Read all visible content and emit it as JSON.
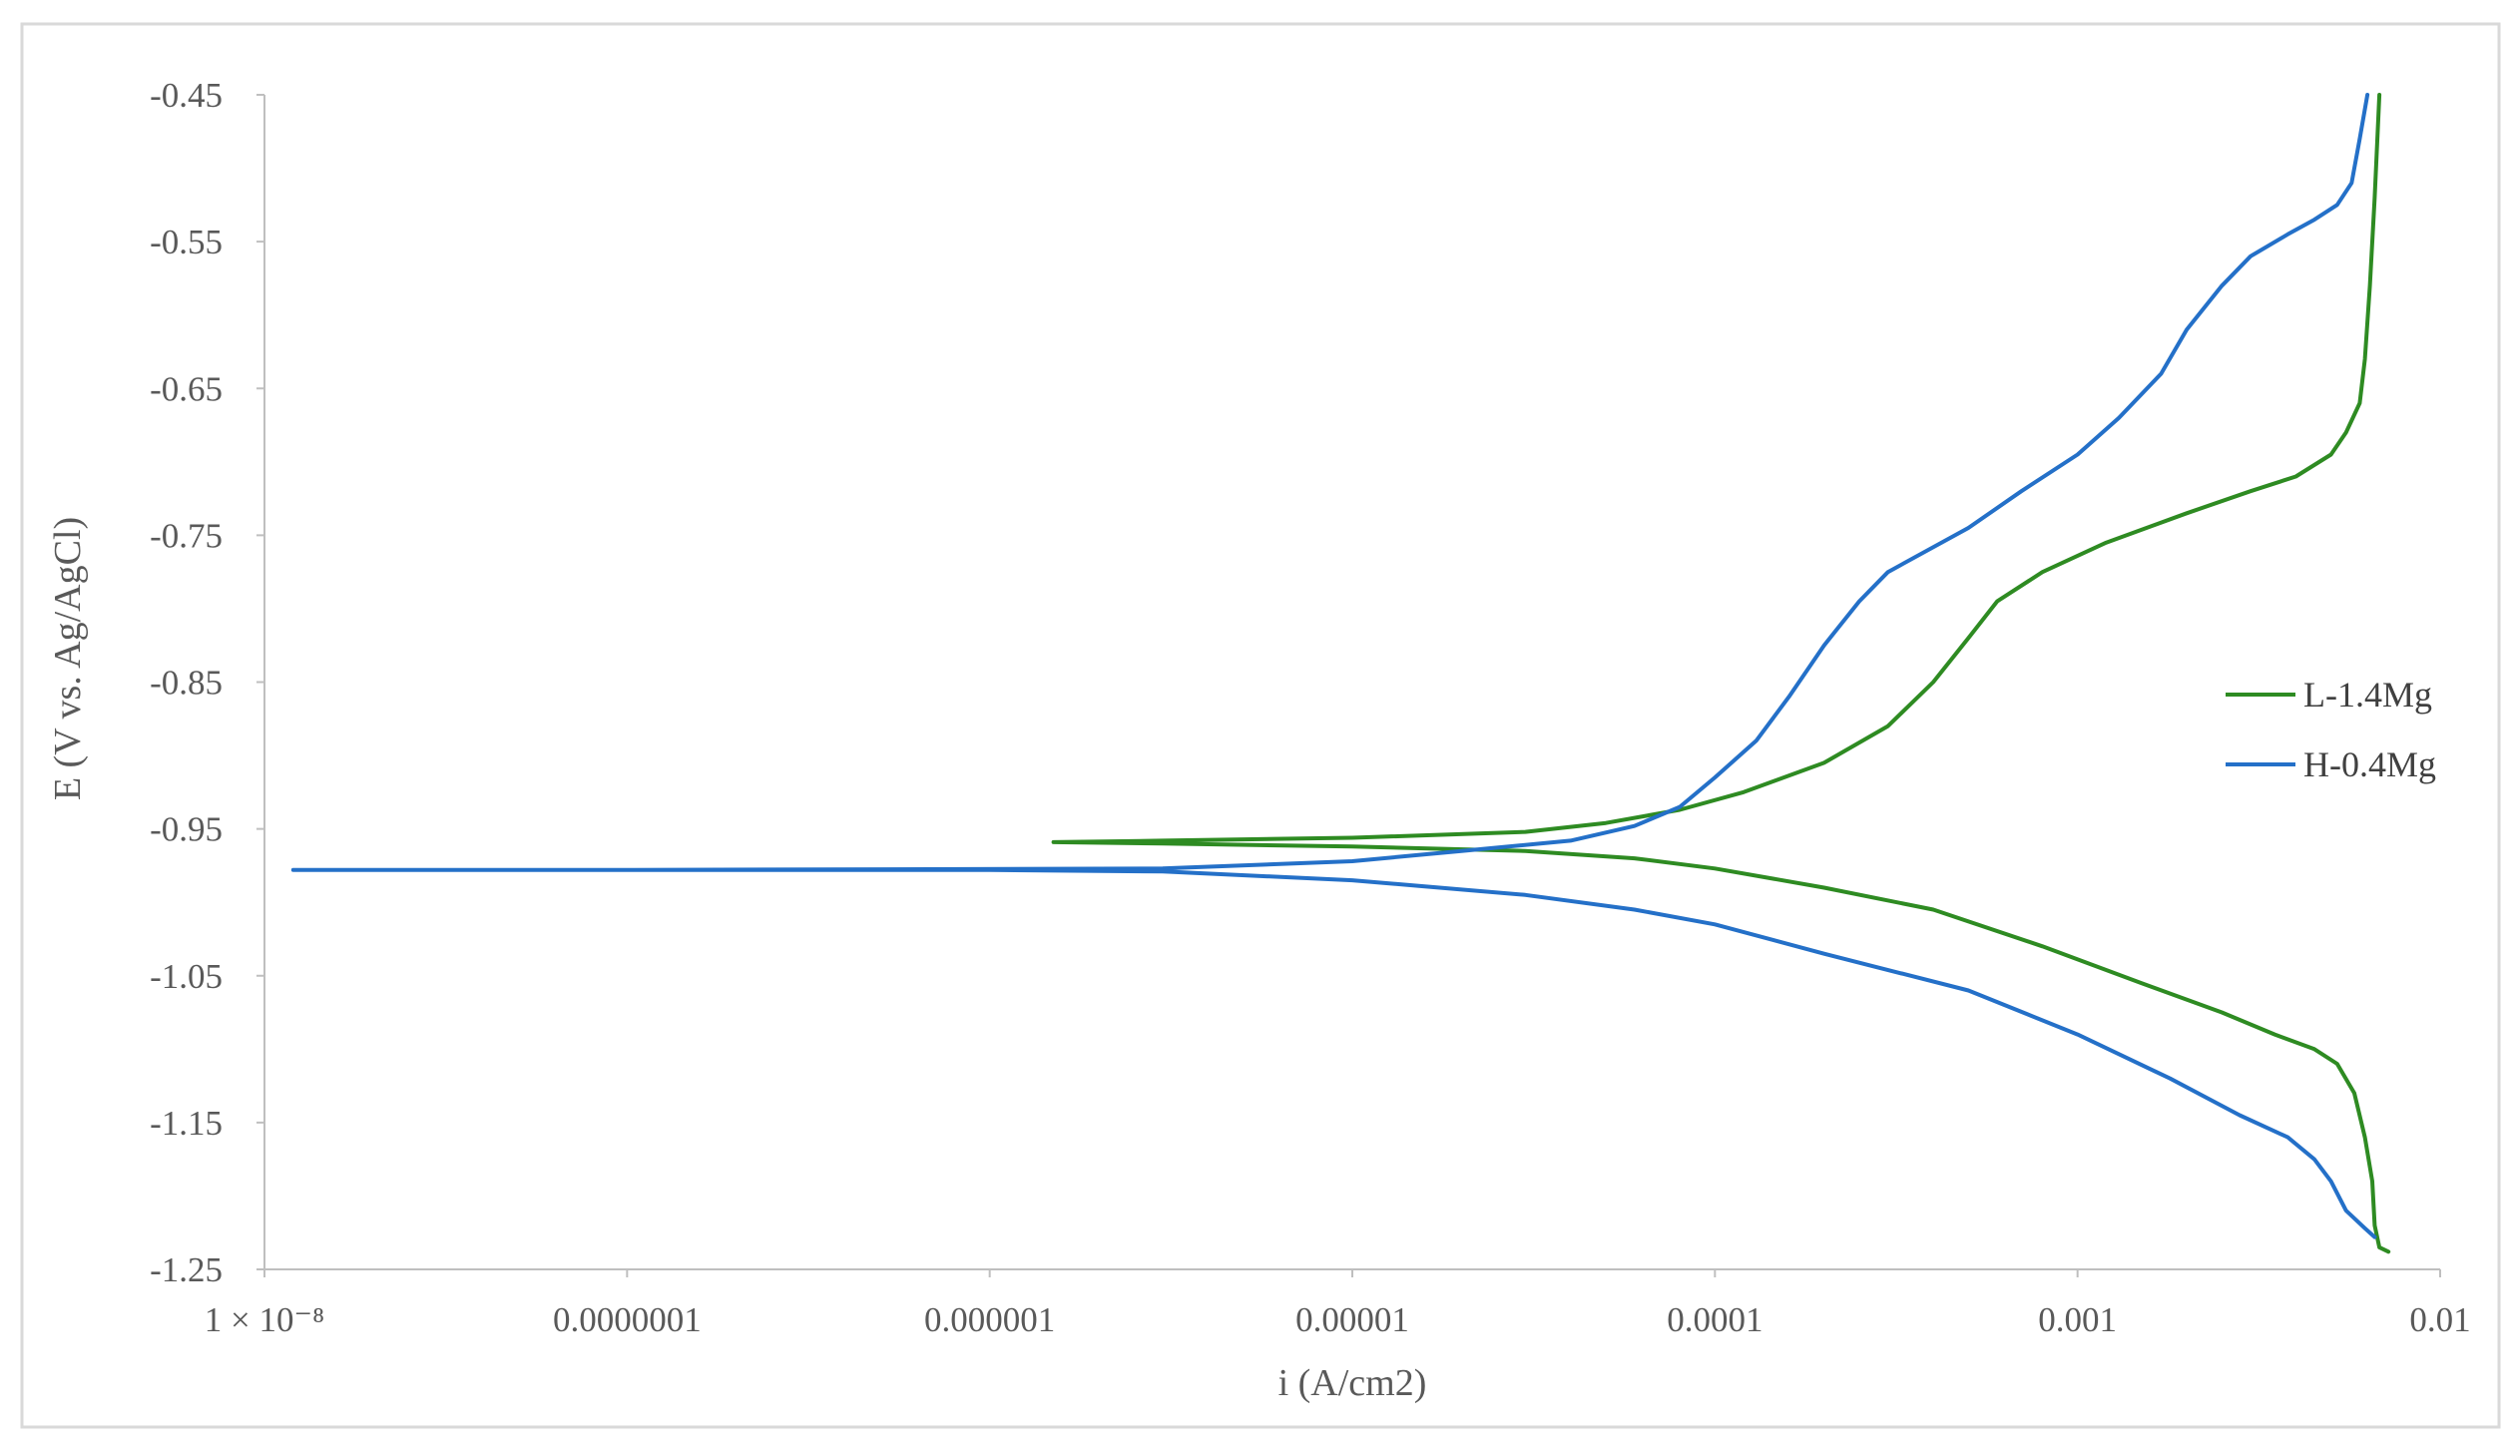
{
  "chart_data": {
    "type": "line",
    "title": "",
    "xlabel": "i (A/cm2)",
    "ylabel": "E (V vs. Ag/AgCl)",
    "x_scale": "log",
    "xlim": [
      1e-08,
      0.01
    ],
    "ylim": [
      -1.25,
      -0.45
    ],
    "grid": false,
    "legend_position": "right",
    "x_ticks": [
      {
        "value": 1e-08,
        "label": "1 × 10⁻⁸"
      },
      {
        "value": 1e-07,
        "label": "0.0000001"
      },
      {
        "value": 1e-06,
        "label": "0.000001"
      },
      {
        "value": 1e-05,
        "label": "0.00001"
      },
      {
        "value": 0.0001,
        "label": "0.0001"
      },
      {
        "value": 0.001,
        "label": "0.001"
      },
      {
        "value": 0.01,
        "label": "0.01"
      }
    ],
    "y_ticks": [
      {
        "value": -0.45,
        "label": "-0.45"
      },
      {
        "value": -0.55,
        "label": "-0.55"
      },
      {
        "value": -0.65,
        "label": "-0.65"
      },
      {
        "value": -0.75,
        "label": "-0.75"
      },
      {
        "value": -0.85,
        "label": "-0.85"
      },
      {
        "value": -0.95,
        "label": "-0.95"
      },
      {
        "value": -1.05,
        "label": "-1.05"
      },
      {
        "value": -1.15,
        "label": "-1.15"
      },
      {
        "value": -1.25,
        "label": "-1.25"
      }
    ],
    "series": [
      {
        "name": "L-1.4Mg",
        "color": "#2e8b22",
        "points": [
          [
            0.0068,
            -0.45
          ],
          [
            0.0066,
            -0.52
          ],
          [
            0.0064,
            -0.58
          ],
          [
            0.0062,
            -0.63
          ],
          [
            0.006,
            -0.66
          ],
          [
            0.0055,
            -0.68
          ],
          [
            0.005,
            -0.695
          ],
          [
            0.004,
            -0.71
          ],
          [
            0.003,
            -0.72
          ],
          [
            0.002,
            -0.735
          ],
          [
            0.0012,
            -0.755
          ],
          [
            0.0008,
            -0.775
          ],
          [
            0.0006,
            -0.795
          ],
          [
            0.0005,
            -0.82
          ],
          [
            0.0004,
            -0.85
          ],
          [
            0.0003,
            -0.88
          ],
          [
            0.0002,
            -0.905
          ],
          [
            0.00012,
            -0.925
          ],
          [
            8e-05,
            -0.937
          ],
          [
            5e-05,
            -0.946
          ],
          [
            3e-05,
            -0.952
          ],
          [
            1e-05,
            -0.956
          ],
          [
            3e-06,
            -0.958
          ],
          [
            1.5e-06,
            -0.959
          ],
          [
            3e-06,
            -0.96
          ],
          [
            1e-05,
            -0.962
          ],
          [
            3e-05,
            -0.965
          ],
          [
            6e-05,
            -0.97
          ],
          [
            0.0001,
            -0.977
          ],
          [
            0.0002,
            -0.99
          ],
          [
            0.0004,
            -1.005
          ],
          [
            0.0008,
            -1.03
          ],
          [
            0.0015,
            -1.055
          ],
          [
            0.0025,
            -1.075
          ],
          [
            0.0035,
            -1.09
          ],
          [
            0.0045,
            -1.1
          ],
          [
            0.0052,
            -1.11
          ],
          [
            0.0058,
            -1.13
          ],
          [
            0.0062,
            -1.16
          ],
          [
            0.0065,
            -1.19
          ],
          [
            0.0066,
            -1.22
          ],
          [
            0.0068,
            -1.235
          ],
          [
            0.0072,
            -1.238
          ]
        ]
      },
      {
        "name": "H-0.4Mg",
        "color": "#2470c8",
        "points": [
          [
            0.0063,
            -0.45
          ],
          [
            0.006,
            -0.48
          ],
          [
            0.0057,
            -0.51
          ],
          [
            0.0052,
            -0.525
          ],
          [
            0.0045,
            -0.535
          ],
          [
            0.0038,
            -0.545
          ],
          [
            0.003,
            -0.56
          ],
          [
            0.0025,
            -0.58
          ],
          [
            0.002,
            -0.61
          ],
          [
            0.0017,
            -0.64
          ],
          [
            0.0013,
            -0.67
          ],
          [
            0.001,
            -0.695
          ],
          [
            0.0007,
            -0.72
          ],
          [
            0.0005,
            -0.745
          ],
          [
            0.0003,
            -0.775
          ],
          [
            0.00025,
            -0.795
          ],
          [
            0.0002,
            -0.825
          ],
          [
            0.00016,
            -0.86
          ],
          [
            0.00013,
            -0.89
          ],
          [
            0.0001,
            -0.915
          ],
          [
            8e-05,
            -0.935
          ],
          [
            6e-05,
            -0.948
          ],
          [
            4e-05,
            -0.958
          ],
          [
            2e-05,
            -0.965
          ],
          [
            1e-05,
            -0.972
          ],
          [
            3e-06,
            -0.977
          ],
          [
            1e-07,
            -0.978
          ],
          [
            1.2e-08,
            -0.978
          ],
          [
            1e-07,
            -0.978
          ],
          [
            1e-06,
            -0.978
          ],
          [
            3e-06,
            -0.979
          ],
          [
            1e-05,
            -0.985
          ],
          [
            3e-05,
            -0.995
          ],
          [
            6e-05,
            -1.005
          ],
          [
            0.0001,
            -1.015
          ],
          [
            0.0002,
            -1.035
          ],
          [
            0.0005,
            -1.06
          ],
          [
            0.001,
            -1.09
          ],
          [
            0.0018,
            -1.12
          ],
          [
            0.0028,
            -1.145
          ],
          [
            0.0038,
            -1.16
          ],
          [
            0.0045,
            -1.175
          ],
          [
            0.005,
            -1.19
          ],
          [
            0.0055,
            -1.21
          ],
          [
            0.0062,
            -1.222
          ],
          [
            0.0066,
            -1.228
          ]
        ]
      }
    ]
  }
}
